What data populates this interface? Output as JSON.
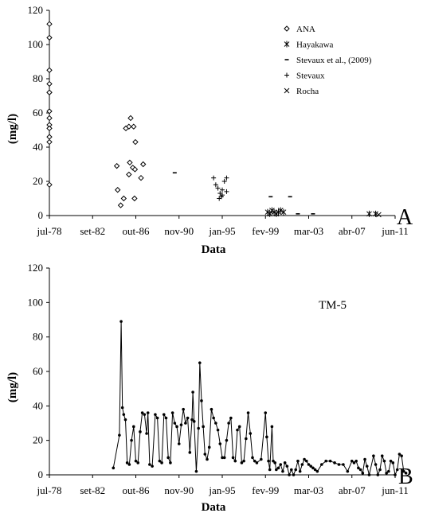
{
  "chart_data": [
    {
      "type": "scatter",
      "panel_label": "A",
      "xlabel": "Data",
      "ylabel": "(mg/l)",
      "ylim": [
        0,
        120
      ],
      "y_ticks": [
        "0",
        "20",
        "40",
        "60",
        "80",
        "100",
        "120"
      ],
      "x_ticks": [
        "jul-78",
        "set-82",
        "out-86",
        "nov-90",
        "jan-95",
        "fev-99",
        "mar-03",
        "abr-07",
        "jun-11"
      ],
      "grid": false,
      "legend_position": "top-right",
      "series": [
        {
          "name": "ANA",
          "marker": "diamond",
          "points": [
            [
              0,
              112
            ],
            [
              0,
              104
            ],
            [
              0,
              85
            ],
            [
              0,
              77
            ],
            [
              0,
              72
            ],
            [
              0,
              72
            ],
            [
              0,
              61
            ],
            [
              0,
              57
            ],
            [
              0,
              53
            ],
            [
              0,
              51
            ],
            [
              0,
              46
            ],
            [
              0,
              43
            ],
            [
              0,
              18
            ],
            [
              1.88,
              57
            ],
            [
              1.84,
              52
            ],
            [
              1.95,
              52
            ],
            [
              1.77,
              51
            ],
            [
              1.99,
              43
            ],
            [
              2.17,
              30
            ],
            [
              1.93,
              28
            ],
            [
              1.86,
              31
            ],
            [
              1.56,
              29
            ],
            [
              1.98,
              27
            ],
            [
              1.84,
              24
            ],
            [
              2.12,
              22
            ],
            [
              1.58,
              15
            ],
            [
              1.72,
              10
            ],
            [
              1.97,
              10
            ],
            [
              1.65,
              6
            ]
          ]
        },
        {
          "name": "Hayakawa",
          "marker": "asterisk",
          "points": [
            [
              5.05,
              2
            ],
            [
              5.1,
              1
            ],
            [
              5.15,
              3
            ],
            [
              5.2,
              2
            ],
            [
              5.25,
              1
            ],
            [
              5.3,
              2
            ],
            [
              5.35,
              3
            ],
            [
              5.42,
              2
            ],
            [
              7.4,
              1
            ],
            [
              7.55,
              1
            ]
          ]
        },
        {
          "name": "Stevaux et al., (2009)",
          "marker": "dash",
          "points": [
            [
              2.9,
              25
            ],
            [
              5.12,
              11
            ],
            [
              5.57,
              11
            ],
            [
              5.75,
              1
            ],
            [
              6.1,
              1
            ]
          ]
        },
        {
          "name": "Stevaux",
          "marker": "plus",
          "points": [
            [
              3.8,
              22
            ],
            [
              4.1,
              22
            ],
            [
              4.05,
              20
            ],
            [
              3.85,
              18
            ],
            [
              3.9,
              16
            ],
            [
              4.0,
              15
            ],
            [
              4.1,
              14
            ],
            [
              3.95,
              13
            ],
            [
              4.0,
              12
            ],
            [
              3.98,
              11
            ],
            [
              3.93,
              10
            ]
          ]
        },
        {
          "name": "Rocha",
          "marker": "cross",
          "points": [
            [
              7.62,
              0.5
            ]
          ]
        }
      ]
    },
    {
      "type": "line",
      "panel_label": "B",
      "series_label": "TM-5",
      "xlabel": "Data",
      "ylabel": "(mg/l)",
      "ylim": [
        0,
        120
      ],
      "y_ticks": [
        "0",
        "20",
        "40",
        "60",
        "80",
        "100",
        "120"
      ],
      "x_ticks": [
        "jul-78",
        "set-82",
        "out-86",
        "nov-90",
        "jan-95",
        "fev-99",
        "mar-03",
        "abr-07",
        "jun-11"
      ],
      "grid": false,
      "series": [
        {
          "name": "TM-5",
          "marker": "diamond",
          "points": [
            [
              1.48,
              4
            ],
            [
              1.62,
              23
            ],
            [
              1.66,
              89
            ],
            [
              1.69,
              39
            ],
            [
              1.72,
              35
            ],
            [
              1.76,
              32
            ],
            [
              1.8,
              7
            ],
            [
              1.85,
              6
            ],
            [
              1.9,
              20
            ],
            [
              1.95,
              28
            ],
            [
              2.0,
              8
            ],
            [
              2.05,
              7
            ],
            [
              2.1,
              25
            ],
            [
              2.15,
              36
            ],
            [
              2.2,
              35
            ],
            [
              2.25,
              24
            ],
            [
              2.28,
              36
            ],
            [
              2.32,
              6
            ],
            [
              2.38,
              5
            ],
            [
              2.45,
              35
            ],
            [
              2.5,
              33
            ],
            [
              2.55,
              8
            ],
            [
              2.6,
              7
            ],
            [
              2.65,
              35
            ],
            [
              2.7,
              33
            ],
            [
              2.75,
              10
            ],
            [
              2.8,
              7
            ],
            [
              2.85,
              36
            ],
            [
              2.9,
              30
            ],
            [
              2.95,
              28
            ],
            [
              3.0,
              18
            ],
            [
              3.05,
              29
            ],
            [
              3.1,
              38
            ],
            [
              3.15,
              30
            ],
            [
              3.2,
              33
            ],
            [
              3.25,
              13
            ],
            [
              3.3,
              32
            ],
            [
              3.32,
              48
            ],
            [
              3.35,
              31
            ],
            [
              3.4,
              2
            ],
            [
              3.45,
              27
            ],
            [
              3.48,
              65
            ],
            [
              3.52,
              43
            ],
            [
              3.56,
              28
            ],
            [
              3.6,
              12
            ],
            [
              3.65,
              9
            ],
            [
              3.7,
              16
            ],
            [
              3.75,
              38
            ],
            [
              3.8,
              33
            ],
            [
              3.85,
              30
            ],
            [
              3.9,
              26
            ],
            [
              3.95,
              18
            ],
            [
              4.0,
              10
            ],
            [
              4.05,
              10
            ],
            [
              4.1,
              20
            ],
            [
              4.15,
              30
            ],
            [
              4.2,
              33
            ],
            [
              4.25,
              10
            ],
            [
              4.3,
              8
            ],
            [
              4.35,
              26
            ],
            [
              4.4,
              28
            ],
            [
              4.45,
              7
            ],
            [
              4.5,
              8
            ],
            [
              4.55,
              21
            ],
            [
              4.6,
              36
            ],
            [
              4.65,
              24
            ],
            [
              4.7,
              10
            ],
            [
              4.75,
              8
            ],
            [
              4.8,
              7
            ],
            [
              4.9,
              9
            ],
            [
              5.0,
              36
            ],
            [
              5.03,
              22
            ],
            [
              5.07,
              8
            ],
            [
              5.1,
              3
            ],
            [
              5.15,
              28
            ],
            [
              5.18,
              8
            ],
            [
              5.22,
              7
            ],
            [
              5.25,
              3
            ],
            [
              5.3,
              4
            ],
            [
              5.35,
              6
            ],
            [
              5.4,
              2
            ],
            [
              5.45,
              7
            ],
            [
              5.5,
              5
            ],
            [
              5.55,
              0
            ],
            [
              5.6,
              3
            ],
            [
              5.65,
              0
            ],
            [
              5.7,
              3
            ],
            [
              5.75,
              8
            ],
            [
              5.8,
              2
            ],
            [
              5.85,
              6
            ],
            [
              5.9,
              9
            ],
            [
              5.95,
              8
            ],
            [
              6.0,
              6
            ],
            [
              6.05,
              5
            ],
            [
              6.1,
              4
            ],
            [
              6.15,
              3
            ],
            [
              6.2,
              2
            ],
            [
              6.3,
              6
            ],
            [
              6.4,
              8
            ],
            [
              6.5,
              8
            ],
            [
              6.6,
              7
            ],
            [
              6.7,
              6
            ],
            [
              6.8,
              6
            ],
            [
              6.9,
              2
            ],
            [
              7.0,
              8
            ],
            [
              7.05,
              7
            ],
            [
              7.1,
              8
            ],
            [
              7.15,
              4
            ],
            [
              7.2,
              3
            ],
            [
              7.25,
              1
            ],
            [
              7.3,
              9
            ],
            [
              7.35,
              5
            ],
            [
              7.4,
              0
            ],
            [
              7.5,
              11
            ],
            [
              7.55,
              6
            ],
            [
              7.6,
              0
            ],
            [
              7.65,
              3
            ],
            [
              7.7,
              11
            ],
            [
              7.75,
              8
            ],
            [
              7.8,
              1
            ],
            [
              7.85,
              2
            ],
            [
              7.9,
              8
            ],
            [
              7.95,
              7
            ],
            [
              8.0,
              0
            ],
            [
              8.05,
              3
            ],
            [
              8.1,
              12
            ],
            [
              8.15,
              11
            ],
            [
              8.2,
              2
            ],
            [
              8.25,
              1
            ]
          ]
        }
      ]
    }
  ]
}
